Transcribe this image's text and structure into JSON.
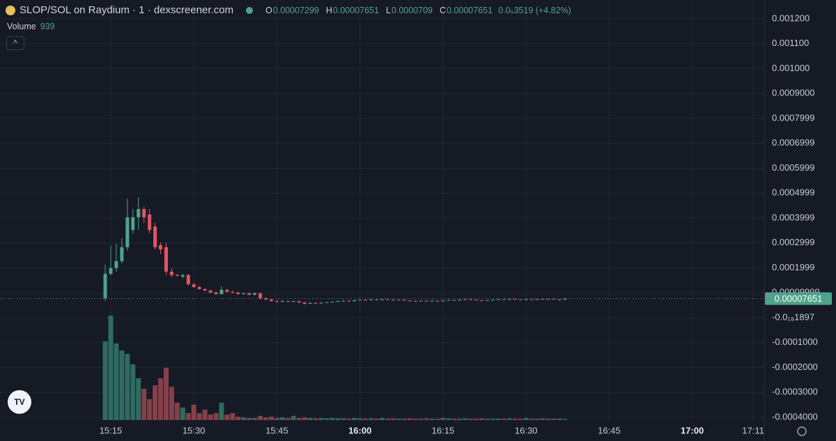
{
  "header": {
    "title": "SLOP/SOL on Raydium · 1 · dexscreener.com",
    "ohlc_labels": [
      "O",
      "H",
      "L",
      "C"
    ],
    "change": "0.0₅3519 (+4.82%)",
    "volume_label": "Volume"
  },
  "chart_data": {
    "type": "candlestick",
    "x": [
      "15:14",
      "15:15",
      "15:16",
      "15:17",
      "15:18",
      "15:19",
      "15:20",
      "15:21",
      "15:22",
      "15:23",
      "15:24",
      "15:25",
      "15:26",
      "15:27",
      "15:28",
      "15:29",
      "15:30",
      "15:31",
      "15:32",
      "15:33",
      "15:34",
      "15:35",
      "15:36",
      "15:37",
      "15:38",
      "15:39",
      "15:40",
      "15:41",
      "15:42",
      "15:43",
      "15:44",
      "15:45",
      "15:46",
      "15:47",
      "15:48",
      "15:49",
      "15:50",
      "15:51",
      "15:52",
      "15:53",
      "15:54",
      "15:55",
      "15:56",
      "15:57",
      "15:58",
      "15:59",
      "16:00",
      "16:01",
      "16:02",
      "16:03",
      "16:04",
      "16:05",
      "16:06",
      "16:07",
      "16:08",
      "16:09",
      "16:10",
      "16:11",
      "16:12",
      "16:13",
      "16:14",
      "16:15",
      "16:16",
      "16:17",
      "16:18",
      "16:19",
      "16:20",
      "16:21",
      "16:22",
      "16:23",
      "16:24",
      "16:25",
      "16:26",
      "16:27",
      "16:28",
      "16:29",
      "16:30",
      "16:31",
      "16:32",
      "16:33",
      "16:34",
      "16:35",
      "16:36",
      "16:37"
    ],
    "open": [
      7.8e-05,
      0.000176,
      0.000199,
      0.000227,
      0.000283,
      0.000352,
      0.000403,
      0.000436,
      0.000414,
      0.000366,
      0.000291,
      0.000283,
      0.000185,
      0.000171,
      0.000165,
      0.000171,
      0.000134,
      0.000123,
      0.000115,
      0.000109,
      0.000101,
      9.5e-05,
      0.000112,
      0.000104,
      0.000101,
      9.5e-05,
      9.8e-05,
      9.2e-05,
      9.8e-05,
      7.8e-05,
      7.3e-05,
      6.7e-05,
      6.4e-05,
      6.7e-05,
      6.4e-05,
      6.6e-05,
      6.1e-05,
      5.6e-05,
      5.9e-05,
      5.8e-05,
      6e-05,
      6.2e-05,
      6.4e-05,
      6.6e-05,
      6.8e-05,
      6.6e-05,
      7e-05,
      7.2e-05,
      7e-05,
      7.3e-05,
      7.1e-05,
      7.4e-05,
      7.2e-05,
      7e-05,
      7.2e-05,
      6.9e-05,
      6.7e-05,
      6.6e-05,
      6.8e-05,
      6.6e-05,
      6.8e-05,
      6.6e-05,
      6.9e-05,
      7.1e-05,
      6.9e-05,
      7.2e-05,
      7.4e-05,
      7.2e-05,
      7e-05,
      6.8e-05,
      7e-05,
      7.2e-05,
      7.4e-05,
      7.2e-05,
      7.5e-05,
      7.3e-05,
      7.1e-05,
      7.4e-05,
      7.2e-05,
      7.5e-05,
      7.3e-05,
      7.5e-05,
      7.3e-05,
      7.299e-05
    ],
    "high": [
      0.000213,
      0.00029,
      0.000297,
      0.000319,
      0.000478,
      0.000436,
      0.000484,
      0.000445,
      0.000436,
      0.00038,
      0.000302,
      0.000302,
      0.000199,
      0.000176,
      0.000176,
      0.000176,
      0.00014,
      0.000126,
      0.000118,
      0.000112,
      0.000104,
      0.000126,
      0.000115,
      0.000109,
      0.000104,
      0.000101,
      0.000101,
      0.000101,
      0.000101,
      8.1e-05,
      7.5e-05,
      7e-05,
      7e-05,
      6.8e-05,
      6.8e-05,
      6.7e-05,
      6.4e-05,
      6.2e-05,
      6.1e-05,
      6.2e-05,
      6.4e-05,
      6.6e-05,
      6.8e-05,
      7e-05,
      6.9e-05,
      7.2e-05,
      7.4e-05,
      7.3e-05,
      7.5e-05,
      7.4e-05,
      7.6e-05,
      7.5e-05,
      7.4e-05,
      7.3e-05,
      7.3e-05,
      7.1e-05,
      6.9e-05,
      6.9e-05,
      6.9e-05,
      7e-05,
      6.9e-05,
      7.1e-05,
      7.3e-05,
      7.2e-05,
      7.4e-05,
      7.6e-05,
      7.5e-05,
      7.3e-05,
      7.1e-05,
      7.1e-05,
      7.3e-05,
      7.5e-05,
      7.5e-05,
      7.6e-05,
      7.6e-05,
      7.4e-05,
      7.5e-05,
      7.5e-05,
      7.6e-05,
      7.6e-05,
      7.6e-05,
      7.6e-05,
      7.5e-05,
      7.651e-05
    ],
    "low": [
      6.7e-05,
      0.000171,
      0.000185,
      0.000218,
      0.000269,
      0.000338,
      0.000352,
      0.00038,
      0.000338,
      0.000274,
      0.000255,
      0.000171,
      0.000162,
      0.000165,
      0.000157,
      0.000129,
      0.00012,
      0.000112,
      0.000106,
      9.8e-05,
      9.2e-05,
      9.2e-05,
      0.000101,
      9.8e-05,
      9.2e-05,
      9.2e-05,
      9e-05,
      9e-05,
      7.3e-05,
      7e-05,
      6.4e-05,
      6.2e-05,
      6.2e-05,
      6.2e-05,
      6.2e-05,
      5.9e-05,
      5.3e-05,
      5.5e-05,
      5.6e-05,
      5.6e-05,
      5.9e-05,
      6.1e-05,
      6.3e-05,
      6.5e-05,
      6.4e-05,
      6.5e-05,
      6.9e-05,
      6.8e-05,
      6.9e-05,
      6.9e-05,
      7e-05,
      7e-05,
      6.8e-05,
      6.9e-05,
      6.7e-05,
      6.6e-05,
      6.4e-05,
      6.5e-05,
      6.4e-05,
      6.5e-05,
      6.5e-05,
      6.5e-05,
      6.8e-05,
      6.8e-05,
      6.8e-05,
      7.1e-05,
      7e-05,
      6.8e-05,
      6.6e-05,
      6.7e-05,
      6.9e-05,
      7.1e-05,
      7.1e-05,
      7.1e-05,
      7.2e-05,
      7e-05,
      7e-05,
      7.1e-05,
      7.1e-05,
      7.2e-05,
      7.2e-05,
      7.2e-05,
      7.2e-05,
      7.09e-05
    ],
    "close": [
      0.000176,
      0.000199,
      0.000227,
      0.000283,
      0.000403,
      0.000403,
      0.000436,
      0.000403,
      0.000352,
      0.000283,
      0.000274,
      0.000185,
      0.000171,
      0.000168,
      0.000171,
      0.000134,
      0.000123,
      0.000115,
      0.000109,
      0.000101,
      9.5e-05,
      0.000112,
      0.000104,
      0.000101,
      9.5e-05,
      9.8e-05,
      9.2e-05,
      9.8e-05,
      7.8e-05,
      7.3e-05,
      6.7e-05,
      6.4e-05,
      6.7e-05,
      6.4e-05,
      6.6e-05,
      6.1e-05,
      5.6e-05,
      5.9e-05,
      5.8e-05,
      6e-05,
      6.2e-05,
      6.4e-05,
      6.6e-05,
      6.8e-05,
      6.6e-05,
      7e-05,
      7.2e-05,
      7e-05,
      7.3e-05,
      7.1e-05,
      7.4e-05,
      7.2e-05,
      7e-05,
      7.2e-05,
      6.9e-05,
      6.7e-05,
      6.6e-05,
      6.8e-05,
      6.6e-05,
      6.8e-05,
      6.6e-05,
      6.9e-05,
      7.1e-05,
      6.9e-05,
      7.2e-05,
      7.4e-05,
      7.2e-05,
      7e-05,
      6.8e-05,
      7e-05,
      7.2e-05,
      7.4e-05,
      7.2e-05,
      7.5e-05,
      7.3e-05,
      7.1e-05,
      7.4e-05,
      7.2e-05,
      7.5e-05,
      7.3e-05,
      7.5e-05,
      7.3e-05,
      7.3e-05,
      7.651e-05
    ],
    "volume": [
      70700,
      93900,
      68900,
      62600,
      59500,
      50100,
      37600,
      28200,
      18800,
      31300,
      37600,
      47000,
      30000,
      15600,
      11300,
      6300,
      13800,
      6300,
      9400,
      5000,
      6300,
      15600,
      5000,
      6300,
      3100,
      2500,
      1900,
      1900,
      3800,
      2500,
      3100,
      1900,
      2500,
      1900,
      3800,
      1900,
      2500,
      1900,
      1600,
      1900,
      1600,
      1900,
      1600,
      1600,
      1300,
      1900,
      1600,
      1300,
      1600,
      1300,
      1900,
      1300,
      1600,
      1300,
      1300,
      1600,
      1300,
      1300,
      1600,
      1300,
      1300,
      1900,
      1600,
      1300,
      1300,
      1600,
      1300,
      1300,
      1600,
      1300,
      1300,
      1300,
      1300,
      1600,
      1300,
      1300,
      1900,
      1300,
      1300,
      1600,
      1300,
      1300,
      1300,
      939
    ],
    "up_color": "#4fa38a",
    "down_color": "#e05563",
    "up_volume_color": "#2f6b60",
    "down_volume_color": "#85404a",
    "xlim": [
      "14:55",
      "17:13"
    ],
    "xticks": [
      "15:15",
      "15:30",
      "15:45",
      "16:00",
      "16:15",
      "16:30",
      "16:45",
      "17:00",
      "17:11"
    ],
    "ylim": [
      -0.000411,
      0.001275
    ],
    "yticks": [
      {
        "value": 0.0012,
        "label": "0.001200"
      },
      {
        "value": 0.0011,
        "label": "0.001100"
      },
      {
        "value": 0.001,
        "label": "0.001000"
      },
      {
        "value": 0.0009,
        "label": "0.0009000"
      },
      0.0007999,
      0.0006999,
      0.0005999,
      0.0004999,
      0.0003999,
      0.0002999,
      0.0001999,
      9.999e-05,
      {
        "value": -1.897e-19,
        "label": "-0.0₁₈1897"
      },
      {
        "value": -0.0001,
        "label": "-0.0001000"
      },
      {
        "value": -0.0002,
        "label": "-0.0002000"
      },
      {
        "value": -0.0003,
        "label": "-0.0003000"
      },
      {
        "value": -0.0004,
        "label": "-0.0004000"
      }
    ],
    "grid": true
  }
}
